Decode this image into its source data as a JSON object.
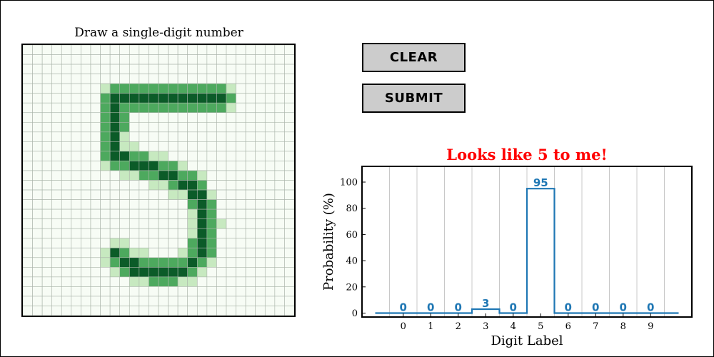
{
  "canvas": {
    "title": "Draw a single-digit number",
    "grid_size": 28,
    "drawn_digit": "5",
    "colormap": "greens"
  },
  "buttons": {
    "clear_label": "CLEAR",
    "submit_label": "SUBMIT"
  },
  "chart_data": {
    "type": "bar",
    "style": "step",
    "title": "Looks like 5 to me!",
    "title_color": "#ff0000",
    "xlabel": "Digit Label",
    "ylabel": "Probability (%)",
    "categories": [
      "0",
      "1",
      "2",
      "3",
      "4",
      "5",
      "6",
      "7",
      "8",
      "9"
    ],
    "values": [
      0,
      0,
      0,
      3,
      0,
      95,
      0,
      0,
      0,
      0
    ],
    "ylim": [
      -3,
      112
    ],
    "yticks": [
      0,
      20,
      40,
      60,
      80,
      100
    ],
    "grid": "vertical",
    "line_color": "#1f77b4"
  }
}
